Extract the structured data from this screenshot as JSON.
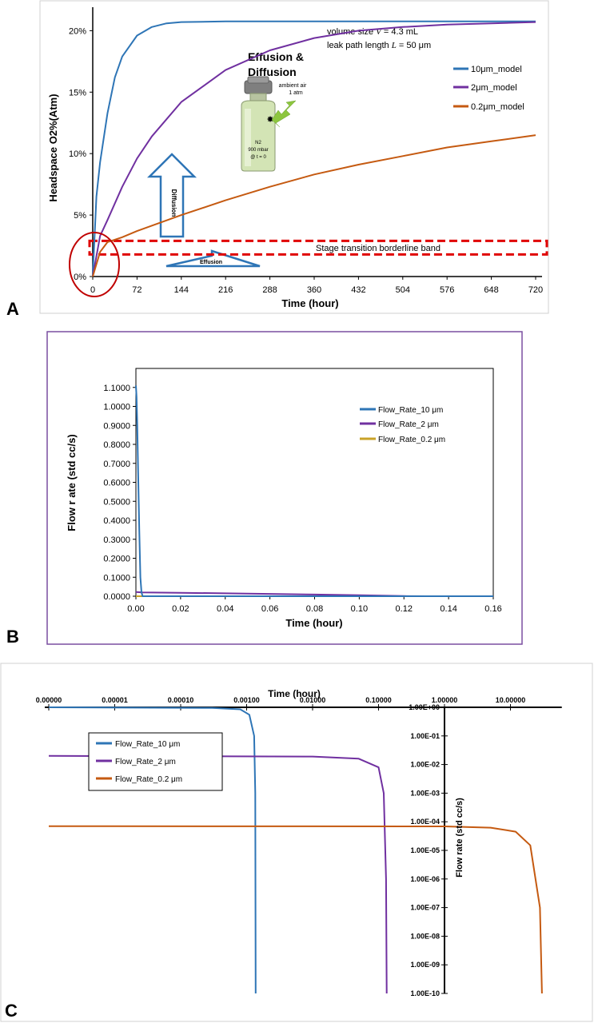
{
  "panels": {
    "a": "A",
    "b": "B",
    "c": "C"
  },
  "colors": {
    "blue": "#2e75b6",
    "purple": "#7030a0",
    "orange": "#c55a11",
    "gold": "#c9a227",
    "red": "#e00000",
    "darkred": "#c00000",
    "green": "#8dc63f",
    "frame_b": "#7a4fa0"
  },
  "chart_data": [
    {
      "panel": "A",
      "type": "line",
      "ylabel": "Headspace O2%(Atm)",
      "xlabel": "Time (hour)",
      "xlim": [
        0,
        720
      ],
      "ylim": [
        0,
        21
      ],
      "x_ticks": [
        "0",
        "72",
        "144",
        "216",
        "288",
        "360",
        "432",
        "504",
        "576",
        "648",
        "720"
      ],
      "y_ticks": [
        "0%",
        "5%",
        "10%",
        "15%",
        "20%"
      ],
      "legend": "right",
      "series": [
        {
          "name": "10μm_model",
          "color": "#2e75b6",
          "x": [
            0,
            6,
            12,
            24,
            36,
            48,
            72,
            96,
            120,
            144,
            216,
            288,
            720
          ],
          "y": [
            0,
            6.5,
            9.3,
            13.3,
            16.2,
            17.9,
            19.6,
            20.3,
            20.6,
            20.7,
            20.75,
            20.75,
            20.75
          ]
        },
        {
          "name": "2μm_model",
          "color": "#7030a0",
          "x": [
            0,
            12,
            24,
            48,
            72,
            96,
            144,
            216,
            288,
            360,
            432,
            504,
            576,
            648,
            720
          ],
          "y": [
            0,
            3.3,
            4.6,
            7.3,
            9.6,
            11.4,
            14.2,
            16.8,
            18.4,
            19.4,
            20.0,
            20.3,
            20.5,
            20.6,
            20.7
          ]
        },
        {
          "name": "0.2μm_model",
          "color": "#c55a11",
          "x": [
            0,
            12,
            24,
            48,
            72,
            144,
            216,
            288,
            360,
            432,
            504,
            576,
            648,
            720
          ],
          "y": [
            0,
            2.0,
            2.8,
            3.2,
            3.7,
            5.0,
            6.2,
            7.3,
            8.3,
            9.1,
            9.8,
            10.5,
            11.0,
            11.5
          ]
        }
      ],
      "annotations": {
        "volume_prefix": "volume size ",
        "volume_var": "V",
        "volume_suffix": " = 4.3 mL",
        "leak_prefix": "leak path length ",
        "leak_var": "L",
        "leak_suffix": " = 50 μm",
        "title_line1": "Effusion &",
        "title_line2": "Diffusion",
        "ambient_line1": "ambient air",
        "ambient_line2": "1 atm",
        "vial_line1": "N2",
        "vial_line2": "900 mbar",
        "vial_line3": "@ t = 0",
        "diffusion_arrow": "Diffusion",
        "effusion_arrow": "Effusion",
        "band_label": "Stage transition borderline band",
        "band_range": [
          1.8,
          2.9
        ]
      }
    },
    {
      "panel": "B",
      "type": "line",
      "ylabel": "Flow r ate (std cc/s)",
      "xlabel": "Time (hour)",
      "xlim": [
        0,
        0.16
      ],
      "ylim": [
        0,
        1.2
      ],
      "x_ticks": [
        "0.00",
        "0.02",
        "0.04",
        "0.06",
        "0.08",
        "0.10",
        "0.12",
        "0.14",
        "0.16"
      ],
      "y_ticks": [
        "0.0000",
        "0.1000",
        "0.2000",
        "0.3000",
        "0.4000",
        "0.5000",
        "0.6000",
        "0.7000",
        "0.8000",
        "0.9000",
        "1.0000",
        "1.1000"
      ],
      "legend": "right",
      "series": [
        {
          "name": "Flow_Rate_10 μm",
          "color": "#2e75b6",
          "x": [
            0,
            0.0003,
            0.0006,
            0.001,
            0.0015,
            0.002,
            0.0025,
            0.003,
            0.16
          ],
          "y": [
            1.11,
            1.05,
            0.9,
            0.65,
            0.35,
            0.1,
            0.02,
            0,
            0
          ]
        },
        {
          "name": "Flow_Rate_2 μm",
          "color": "#7030a0",
          "x": [
            0,
            0.003,
            0.02,
            0.04,
            0.06,
            0.08,
            0.1,
            0.12,
            0.13,
            0.16
          ],
          "y": [
            0.022,
            0.02,
            0.018,
            0.015,
            0.012,
            0.009,
            0.005,
            0.001,
            0,
            0
          ]
        },
        {
          "name": "Flow_Rate_0.2 μm",
          "color": "#c9a227",
          "x": [
            0,
            0.16
          ],
          "y": [
            0.0002,
            0.0002
          ]
        }
      ]
    },
    {
      "panel": "C",
      "type": "line",
      "xlabel": "Time (hour)",
      "ylabel": "Flow rate (std cc/s)",
      "x_scale": "log",
      "y_scale": "log",
      "x_ticks": [
        "0.00000",
        "0.00001",
        "0.00010",
        "0.00100",
        "0.01000",
        "0.10000",
        "1.00000",
        "10.00000"
      ],
      "y_ticks": [
        "1.00E+00",
        "1.00E-01",
        "1.00E-02",
        "1.00E-03",
        "1.00E-04",
        "1.00E-05",
        "1.00E-06",
        "1.00E-07",
        "1.00E-08",
        "1.00E-09",
        "1.00E-10"
      ],
      "legend": "bottom-left",
      "series": [
        {
          "name": "Flow_Rate_10 μm",
          "color": "#2e75b6",
          "x": [
            1e-07,
            0.0003,
            0.0008,
            0.0011,
            0.0013,
            0.00135,
            0.00137
          ],
          "y": [
            1.0,
            0.95,
            0.85,
            0.55,
            0.1,
            0.001,
            1e-10
          ]
        },
        {
          "name": "Flow_Rate_2 μm",
          "color": "#7030a0",
          "x": [
            1e-07,
            0.01,
            0.05,
            0.1,
            0.12,
            0.13,
            0.133
          ],
          "y": [
            0.02,
            0.019,
            0.016,
            0.008,
            0.001,
            1e-06,
            1e-10
          ]
        },
        {
          "name": "Flow_Rate_0.2 μm",
          "color": "#c55a11",
          "x": [
            1e-07,
            1.0,
            5.0,
            12.0,
            20.0,
            28.0,
            30.0
          ],
          "y": [
            7e-05,
            6.9e-05,
            6.2e-05,
            4.5e-05,
            1.5e-05,
            1e-07,
            1e-10
          ]
        }
      ]
    }
  ]
}
